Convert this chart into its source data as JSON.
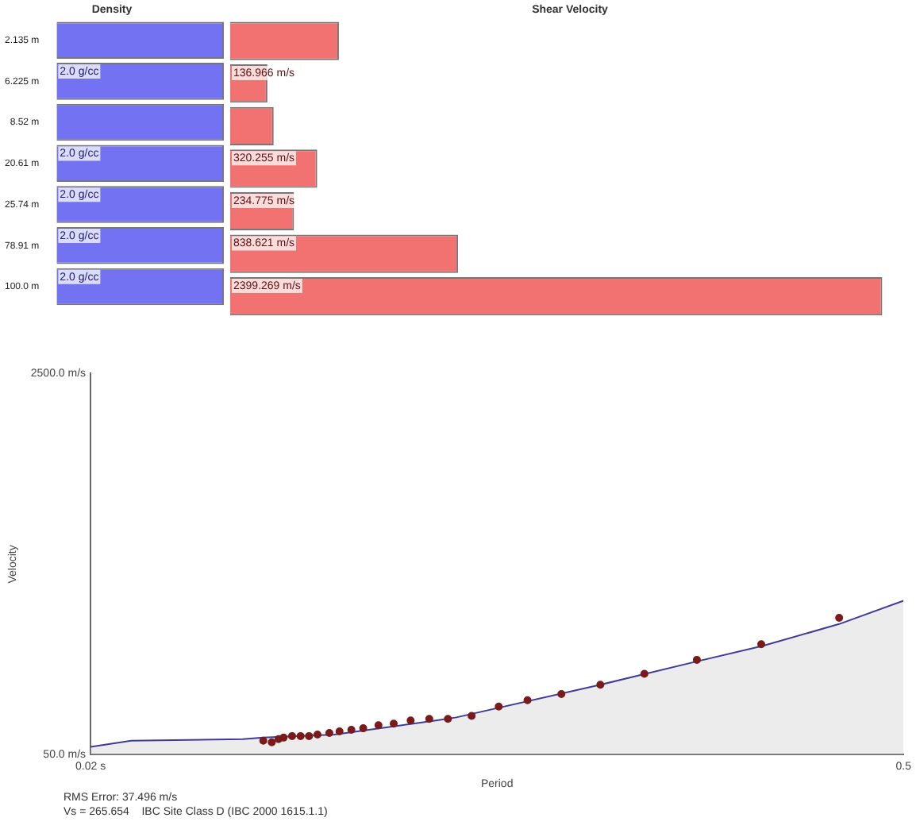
{
  "chart_data": [
    {
      "type": "bar",
      "orientation": "horizontal",
      "title": "Density",
      "categories": [
        "2.135 m",
        "6.225 m",
        "8.52 m",
        "20.61 m",
        "25.74 m",
        "78.91 m",
        "100.0 m"
      ],
      "values": [
        2.0,
        2.0,
        2.0,
        2.0,
        2.0,
        2.0,
        2.0
      ],
      "color": "#7272f2",
      "value_labels": [
        null,
        "2.0 g/cc",
        null,
        "2.0 g/cc",
        "2.0 g/cc",
        "2.0 g/cc",
        "2.0 g/cc"
      ],
      "tick_labels": "y",
      "grid": false,
      "legend": false
    },
    {
      "type": "bar",
      "orientation": "horizontal",
      "title": "Shear Velocity",
      "values": [
        400,
        136.966,
        160,
        320.255,
        234.775,
        838.621,
        2399.269
      ],
      "color": "#f27272",
      "value_labels": [
        null,
        "136.966 m/s",
        null,
        "320.255 m/s",
        "234.775 m/s",
        "838.621 m/s",
        "2399.269 m/s"
      ],
      "grid": false,
      "legend": false
    },
    {
      "type": "scatter",
      "xlabel": "Period",
      "ylabel": "Velocity",
      "xlim": [
        0.02,
        0.5
      ],
      "ylim": [
        50,
        2500
      ],
      "xticks": [
        {
          "value": 0.02,
          "label": "0.02 s"
        },
        {
          "value": 0.5,
          "label": "0.5"
        }
      ],
      "yticks": [
        {
          "value": 50,
          "label": "50.0 m/s"
        },
        {
          "value": 2500,
          "label": "2500.0 m/s"
        }
      ],
      "grid": false,
      "legend": false,
      "series": [
        {
          "type": "area",
          "marker": "none",
          "color": "#3c3c9c",
          "x": [
            0.02,
            0.044,
            0.11,
            0.122,
            0.164,
            0.224,
            0.236,
            0.321,
            0.378,
            0.417,
            0.462,
            0.5
          ],
          "values": [
            100,
            140,
            150,
            160,
            180,
            270,
            290,
            500,
            650,
            750,
            890,
            1040
          ]
        },
        {
          "type": "scatter",
          "marker": "circle",
          "color": "#7a1a1a",
          "x": [
            0.122,
            0.127,
            0.131,
            0.134,
            0.139,
            0.144,
            0.149,
            0.154,
            0.161,
            0.167,
            0.174,
            0.181,
            0.19,
            0.199,
            0.209,
            0.22,
            0.231,
            0.245,
            0.261,
            0.278,
            0.298,
            0.321,
            0.347,
            0.378,
            0.416,
            0.462
          ],
          "values": [
            140,
            130,
            150,
            160,
            170,
            170,
            170,
            180,
            190,
            200,
            210,
            220,
            240,
            250,
            270,
            280,
            280,
            300,
            360,
            400,
            440,
            500,
            570,
            660,
            760,
            930
          ]
        }
      ],
      "annotations": [
        "RMS Error: 37.496 m/s",
        "Vs = 265.654    IBC Site Class D (IBC 2000 1615.1.1)"
      ]
    }
  ]
}
